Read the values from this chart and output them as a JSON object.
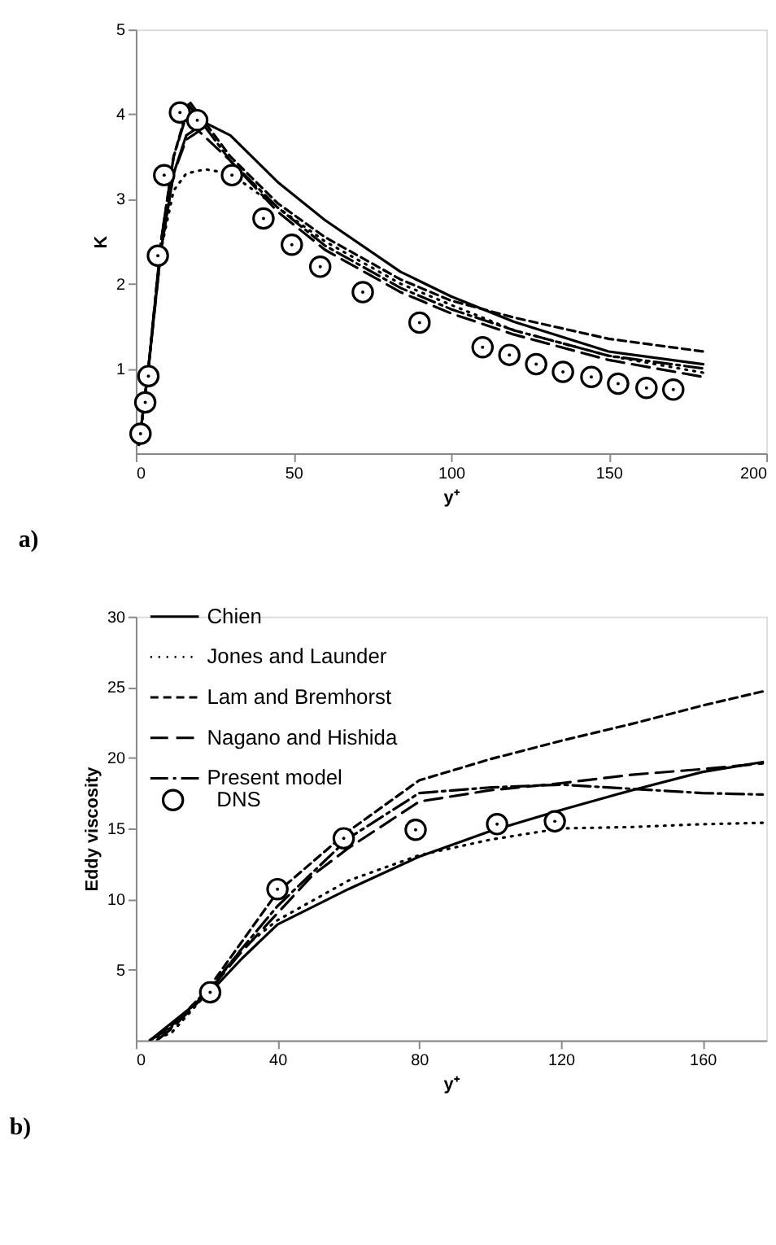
{
  "chart_data": [
    {
      "type": "line",
      "xlabel": "y⁺",
      "ylabel": "K",
      "xlim": [
        0,
        200
      ],
      "xticks": [
        0,
        50,
        100,
        150,
        200
      ],
      "ylim": [
        0,
        5
      ],
      "yticks": [
        1,
        2,
        3,
        4,
        5
      ],
      "grid": false,
      "legend": false,
      "annotations": [
        "a)"
      ],
      "series": [
        {
          "color": "#000000",
          "line_style": "solid",
          "x": [
            1,
            4,
            8,
            12,
            16,
            22,
            30,
            45,
            60,
            84,
            100,
            120,
            150,
            180
          ],
          "values": [
            0.1,
            1.0,
            2.4,
            3.3,
            3.75,
            3.9,
            3.75,
            3.2,
            2.75,
            2.14,
            1.85,
            1.55,
            1.2,
            1.05
          ]
        },
        {
          "color": "#000000",
          "line_style": "dotted",
          "x": [
            1,
            4,
            8,
            12,
            16,
            22,
            30,
            45,
            60,
            84,
            100,
            120,
            150,
            180
          ],
          "values": [
            0.1,
            1.0,
            2.4,
            3.1,
            3.3,
            3.35,
            3.3,
            2.9,
            2.5,
            2.0,
            1.75,
            1.45,
            1.15,
            0.95
          ]
        },
        {
          "color": "#000000",
          "line_style": "dashed",
          "x": [
            1,
            4,
            8,
            12,
            17,
            22,
            30,
            45,
            60,
            84,
            100,
            120,
            150,
            180
          ],
          "values": [
            0.1,
            1.0,
            2.5,
            3.5,
            4.15,
            3.9,
            3.5,
            2.95,
            2.55,
            2.05,
            1.8,
            1.6,
            1.35,
            1.2
          ]
        },
        {
          "color": "#000000",
          "line_style": "longdash",
          "x": [
            1,
            4,
            8,
            12,
            16,
            20,
            30,
            45,
            60,
            84,
            100,
            120,
            150,
            180
          ],
          "values": [
            0.1,
            1.0,
            2.4,
            3.3,
            3.7,
            3.8,
            3.45,
            2.85,
            2.4,
            1.9,
            1.65,
            1.4,
            1.1,
            0.9
          ]
        },
        {
          "color": "#000000",
          "line_style": "dashdot",
          "x": [
            1,
            4,
            8,
            12,
            17,
            22,
            30,
            45,
            60,
            84,
            100,
            120,
            150,
            180
          ],
          "values": [
            0.1,
            1.0,
            2.5,
            3.5,
            4.1,
            3.85,
            3.45,
            2.9,
            2.45,
            1.95,
            1.7,
            1.45,
            1.15,
            1.0
          ]
        },
        {
          "type": "scatter",
          "color": "#000000",
          "marker": "circle",
          "x": [
            1.5,
            3,
            4,
            7,
            9,
            14,
            19.5,
            30.5,
            40.5,
            49.5,
            58.5,
            72,
            90,
            110,
            118.5,
            127,
            135.5,
            144.5,
            153,
            162,
            170.5
          ],
          "values": [
            0.23,
            0.6,
            0.91,
            2.33,
            3.28,
            4.02,
            3.93,
            3.28,
            2.77,
            2.46,
            2.2,
            1.9,
            1.54,
            1.25,
            1.16,
            1.05,
            0.96,
            0.9,
            0.82,
            0.77,
            0.75
          ]
        }
      ]
    },
    {
      "type": "line",
      "xlabel": "y⁺",
      "ylabel": "Eddy viscosity",
      "xlim": [
        0,
        178
      ],
      "xticks": [
        0,
        40,
        80,
        120,
        160
      ],
      "ylim": [
        0,
        30
      ],
      "yticks": [
        5,
        10,
        15,
        20,
        25,
        30
      ],
      "grid": false,
      "legend": "top left",
      "annotations": [
        "b)"
      ],
      "series": [
        {
          "name": "Chien",
          "color": "#000000",
          "line_style": "solid",
          "x": [
            4,
            10,
            21,
            30,
            40,
            60,
            80,
            100,
            120,
            140,
            160,
            177
          ],
          "values": [
            0,
            1.2,
            3.4,
            5.8,
            8.2,
            10.7,
            13.0,
            14.8,
            16.3,
            17.7,
            19.0,
            19.7
          ]
        },
        {
          "name": "Jones and Launder",
          "color": "#000000",
          "line_style": "dotted",
          "x": [
            4,
            10,
            20,
            30,
            40,
            60,
            80,
            100,
            120,
            140,
            160,
            177
          ],
          "values": [
            0,
            0.5,
            3.3,
            6.5,
            8.5,
            11.3,
            13.1,
            14.2,
            15.0,
            15.1,
            15.3,
            15.4
          ]
        },
        {
          "name": "Lam and Bremhorst",
          "color": "#000000",
          "line_style": "dashed",
          "x": [
            4,
            10,
            20,
            30,
            40,
            60,
            80,
            100,
            120,
            140,
            160,
            177
          ],
          "values": [
            0,
            1.0,
            3.5,
            7.0,
            10.5,
            14.8,
            18.4,
            19.9,
            21.2,
            22.4,
            23.7,
            24.7
          ]
        },
        {
          "name": "Nagano and Hishida",
          "color": "#000000",
          "line_style": "longdash",
          "x": [
            6,
            10,
            20,
            30,
            40,
            50,
            60,
            80,
            100,
            120,
            140,
            160,
            177
          ],
          "values": [
            0,
            0.8,
            3.3,
            6.3,
            9.0,
            11.7,
            13.6,
            16.9,
            17.7,
            18.2,
            18.8,
            19.2,
            19.6
          ]
        },
        {
          "name": "Present model",
          "color": "#000000",
          "line_style": "dashdot",
          "x": [
            4,
            10,
            20,
            30,
            40,
            60,
            80,
            100,
            120,
            140,
            160,
            177
          ],
          "values": [
            0,
            0.9,
            3.4,
            6.5,
            9.5,
            14.3,
            17.5,
            17.9,
            18.1,
            17.8,
            17.5,
            17.4
          ]
        },
        {
          "name": "DNS",
          "type": "scatter",
          "color": "#000000",
          "marker": "circle",
          "x": [
            21,
            40,
            58.7,
            79,
            102,
            118.3
          ],
          "values": [
            3.4,
            10.7,
            14.3,
            14.9,
            15.3,
            15.5
          ]
        }
      ]
    }
  ]
}
